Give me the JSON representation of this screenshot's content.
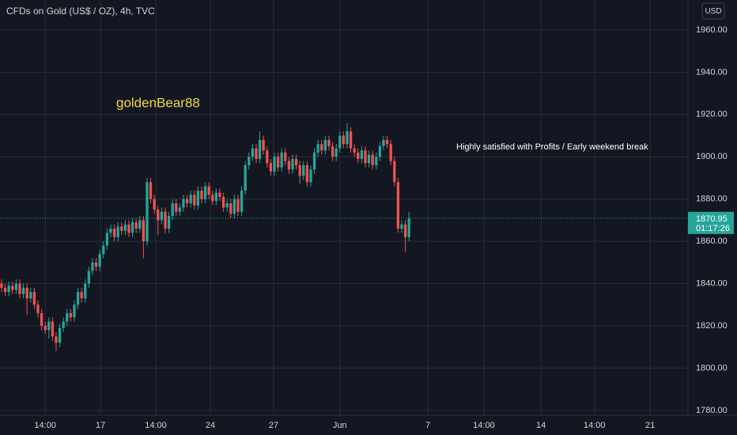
{
  "chart_data": {
    "type": "candlestick",
    "title": "CFDs on Gold (US$ / OZ), 4h, TVC",
    "currency": "USD",
    "annotations": [
      "goldenBear88",
      "Highly satisfied with Profits / Early weekend break"
    ],
    "countdown": "01:17:26",
    "up_color": "#26a69a",
    "down_color": "#ef5350",
    "grid": true,
    "open": [
      1840,
      1838,
      1836,
      1839,
      1837,
      1840,
      1835,
      1838,
      1833,
      1836,
      1830,
      1826,
      1820,
      1818,
      1822,
      1815,
      1812,
      1819,
      1822,
      1826,
      1824,
      1830,
      1836,
      1833,
      1840,
      1846,
      1850,
      1848,
      1854,
      1858,
      1864,
      1866,
      1862,
      1867,
      1865,
      1868,
      1864,
      1869,
      1866,
      1870,
      1860,
      1888,
      1880,
      1875,
      1870,
      1874,
      1866,
      1872,
      1878,
      1874,
      1876,
      1880,
      1878,
      1882,
      1877,
      1884,
      1880,
      1886,
      1882,
      1879,
      1883,
      1881,
      1876,
      1878,
      1873,
      1880,
      1874,
      1884,
      1896,
      1900,
      1904,
      1899,
      1908,
      1903,
      1897,
      1893,
      1900,
      1895,
      1902,
      1898,
      1894,
      1899,
      1896,
      1891,
      1896,
      1888,
      1894,
      1902,
      1906,
      1903,
      1908,
      1905,
      1900,
      1904,
      1910,
      1906,
      1912,
      1904,
      1902,
      1899,
      1903,
      1897,
      1901,
      1896,
      1900,
      1905,
      1908,
      1906,
      1898,
      1888,
      1866,
      1868,
      1862
    ],
    "high": [
      1842,
      1840,
      1841,
      1841,
      1842,
      1842,
      1840,
      1840,
      1838,
      1838,
      1832,
      1828,
      1822,
      1824,
      1824,
      1817,
      1821,
      1824,
      1828,
      1828,
      1832,
      1838,
      1838,
      1842,
      1848,
      1852,
      1852,
      1856,
      1860,
      1866,
      1868,
      1868,
      1869,
      1869,
      1870,
      1870,
      1871,
      1871,
      1872,
      1872,
      1890,
      1890,
      1882,
      1877,
      1876,
      1876,
      1874,
      1880,
      1880,
      1878,
      1882,
      1882,
      1884,
      1884,
      1886,
      1886,
      1888,
      1888,
      1884,
      1885,
      1885,
      1883,
      1880,
      1880,
      1882,
      1882,
      1886,
      1898,
      1902,
      1906,
      1906,
      1912,
      1910,
      1905,
      1899,
      1902,
      1902,
      1904,
      1904,
      1900,
      1901,
      1901,
      1898,
      1898,
      1898,
      1896,
      1904,
      1908,
      1908,
      1910,
      1910,
      1907,
      1906,
      1912,
      1912,
      1916,
      1914,
      1906,
      1904,
      1905,
      1905,
      1903,
      1903,
      1902,
      1907,
      1910,
      1910,
      1908,
      1900,
      1890,
      1870,
      1870,
      1874
    ],
    "low": [
      1836,
      1834,
      1834,
      1835,
      1835,
      1833,
      1833,
      1825,
      1831,
      1828,
      1824,
      1818,
      1816,
      1814,
      1813,
      1808,
      1810,
      1817,
      1820,
      1822,
      1822,
      1828,
      1831,
      1831,
      1838,
      1844,
      1846,
      1846,
      1852,
      1856,
      1862,
      1860,
      1860,
      1863,
      1863,
      1862,
      1862,
      1864,
      1864,
      1852,
      1858,
      1878,
      1873,
      1863,
      1868,
      1864,
      1864,
      1870,
      1872,
      1872,
      1874,
      1876,
      1876,
      1875,
      1875,
      1878,
      1878,
      1880,
      1877,
      1877,
      1879,
      1874,
      1874,
      1871,
      1871,
      1872,
      1872,
      1882,
      1894,
      1898,
      1897,
      1897,
      1901,
      1895,
      1891,
      1891,
      1893,
      1893,
      1896,
      1892,
      1892,
      1894,
      1887,
      1889,
      1886,
      1886,
      1892,
      1900,
      1901,
      1901,
      1903,
      1898,
      1898,
      1902,
      1904,
      1904,
      1902,
      1900,
      1897,
      1897,
      1895,
      1895,
      1894,
      1894,
      1898,
      1903,
      1904,
      1896,
      1886,
      1864,
      1864,
      1855,
      1860
    ],
    "close": [
      1838,
      1836,
      1839,
      1837,
      1840,
      1835,
      1838,
      1833,
      1836,
      1830,
      1826,
      1820,
      1818,
      1822,
      1815,
      1812,
      1819,
      1822,
      1826,
      1824,
      1830,
      1836,
      1833,
      1840,
      1846,
      1850,
      1848,
      1854,
      1858,
      1864,
      1866,
      1862,
      1867,
      1865,
      1868,
      1864,
      1869,
      1866,
      1870,
      1860,
      1888,
      1880,
      1875,
      1870,
      1874,
      1866,
      1872,
      1878,
      1874,
      1876,
      1880,
      1878,
      1882,
      1877,
      1884,
      1880,
      1886,
      1882,
      1879,
      1883,
      1881,
      1876,
      1878,
      1873,
      1880,
      1874,
      1884,
      1896,
      1900,
      1904,
      1899,
      1908,
      1903,
      1897,
      1893,
      1900,
      1895,
      1902,
      1898,
      1894,
      1899,
      1896,
      1891,
      1896,
      1888,
      1894,
      1902,
      1906,
      1903,
      1908,
      1905,
      1900,
      1904,
      1910,
      1906,
      1912,
      1904,
      1902,
      1899,
      1903,
      1897,
      1901,
      1896,
      1900,
      1905,
      1908,
      1906,
      1898,
      1888,
      1866,
      1868,
      1862,
      1870.95
    ],
    "xlim": [
      -0.43,
      188.7
    ],
    "xticks": [
      {
        "value": 12,
        "label": "14:00"
      },
      {
        "value": 27.2,
        "label": "17"
      },
      {
        "value": 42.4,
        "label": "14:00"
      },
      {
        "value": 57.4,
        "label": "24"
      },
      {
        "value": 74.8,
        "label": "27"
      },
      {
        "value": 93,
        "label": "Jun"
      },
      {
        "value": 117.2,
        "label": "7"
      },
      {
        "value": 132.6,
        "label": "14:00"
      },
      {
        "value": 148.3,
        "label": "14"
      },
      {
        "value": 163,
        "label": "14:00"
      },
      {
        "value": 178.3,
        "label": "21"
      }
    ],
    "ylim": [
      1777.7,
      1974.2
    ],
    "yticks": [
      {
        "value": 1780,
        "label": "1780.00"
      },
      {
        "value": 1800,
        "label": "1800.00"
      },
      {
        "value": 1820,
        "label": "1820.00"
      },
      {
        "value": 1840,
        "label": "1840.00"
      },
      {
        "value": 1860,
        "label": "1860.00"
      },
      {
        "value": 1880,
        "label": "1880.00"
      },
      {
        "value": 1900,
        "label": "1900.00"
      },
      {
        "value": 1920,
        "label": "1920.00"
      },
      {
        "value": 1940,
        "label": "1940.00"
      },
      {
        "value": 1960,
        "label": "1960.00"
      }
    ]
  }
}
